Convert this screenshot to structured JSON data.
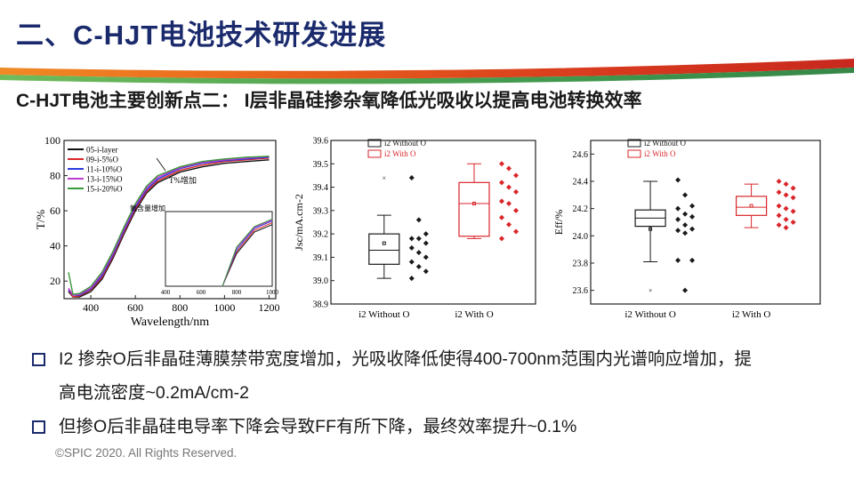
{
  "header": {
    "title": "二、C-HJT电池技术研发进展",
    "subtitle": "C-HJT电池主要创新点二： I层非晶硅掺杂氧降低光吸收以提高电池转换效率"
  },
  "colors": {
    "title": "#1a2a6c",
    "swoosh_orange": "#e8601c",
    "swoosh_green": "#3a9a3a",
    "with_o": "#d9262a",
    "without_o": "#1a1a1a"
  },
  "chart_data": [
    {
      "type": "line",
      "xlabel": "Wavelength/nm",
      "ylabel": "T/%",
      "xlim": [
        280,
        1230
      ],
      "ylim": [
        10,
        100
      ],
      "xticks": [
        "400",
        "600",
        "800",
        "1000",
        "1200"
      ],
      "yticks": [
        "20",
        "40",
        "60",
        "80",
        "100"
      ],
      "x": [
        300,
        320,
        350,
        400,
        450,
        500,
        550,
        600,
        650,
        700,
        800,
        900,
        1000,
        1100,
        1200
      ],
      "series": [
        {
          "name": "05-i-layer",
          "color": "#111111",
          "values": [
            14,
            11,
            11,
            14,
            21,
            33,
            47,
            60,
            70,
            76,
            82,
            85,
            87,
            88,
            89
          ]
        },
        {
          "name": "09-i-5%O",
          "color": "#d9262a",
          "values": [
            15,
            11,
            11.5,
            15,
            22,
            34,
            48,
            61,
            71,
            77,
            83,
            86,
            88,
            89,
            90
          ]
        },
        {
          "name": "11-i-10%O",
          "color": "#2a3adf",
          "values": [
            15,
            12,
            12,
            15.5,
            23,
            35,
            49,
            62,
            72,
            78,
            84,
            87,
            88.5,
            89.5,
            90.5
          ]
        },
        {
          "name": "13-i-15%O",
          "color": "#c03ad0",
          "values": [
            16,
            12,
            12.5,
            16,
            24,
            36,
            50,
            63,
            73,
            79,
            84.5,
            87.5,
            89,
            90,
            91
          ]
        },
        {
          "name": "15-i-20%O",
          "color": "#3a9a3a",
          "values": [
            25,
            12.5,
            13,
            17,
            25,
            37,
            51,
            64,
            74,
            80,
            85,
            88,
            89.5,
            90.5,
            91
          ]
        }
      ],
      "annotations": [
        "T%增加",
        "氧含量增加"
      ],
      "inset": {
        "xlim": [
          400,
          1000
        ],
        "xticks": [
          "400",
          "600",
          "800",
          "1000"
        ],
        "x": [
          720,
          800,
          900,
          1000
        ],
        "series_values": [
          [
            0,
            35,
            58,
            66
          ],
          [
            0,
            37,
            60,
            68
          ],
          [
            0,
            39,
            62,
            70
          ],
          [
            0,
            41,
            63,
            71
          ],
          [
            0,
            42,
            64,
            72
          ]
        ]
      }
    },
    {
      "type": "box",
      "ylabel": "Jsc/mA.cm-2",
      "ylim": [
        38.9,
        39.6
      ],
      "yticks": [
        "38.9",
        "39.0",
        "39.1",
        "39.2",
        "39.3",
        "39.4",
        "39.5",
        "39.6"
      ],
      "categories": [
        "i2 Without O",
        "i2 With O"
      ],
      "legend": [
        "i2 Without O",
        "i2 With O"
      ],
      "boxes": [
        {
          "color": "#1a1a1a",
          "q1": 39.07,
          "median": 39.13,
          "q3": 39.2,
          "wlo": 39.01,
          "whi": 39.28,
          "mean": 39.16,
          "outliers": [
            39.44
          ],
          "points": [
            39.44,
            39.26,
            39.2,
            39.18,
            39.18,
            39.16,
            39.14,
            39.12,
            39.1,
            39.08,
            39.06,
            39.04,
            39.01
          ]
        },
        {
          "color": "#d9262a",
          "q1": 39.19,
          "median": 39.33,
          "q3": 39.42,
          "wlo": 39.18,
          "whi": 39.5,
          "mean": 39.33,
          "outliers": [],
          "points": [
            39.5,
            39.48,
            39.45,
            39.42,
            39.4,
            39.38,
            39.34,
            39.33,
            39.3,
            39.27,
            39.24,
            39.21,
            39.18
          ]
        }
      ]
    },
    {
      "type": "box",
      "ylabel": "Eff/%",
      "ylim": [
        23.5,
        24.7
      ],
      "yticks": [
        "23.6",
        "23.8",
        "24.0",
        "24.2",
        "24.4",
        "24.6"
      ],
      "categories": [
        "i2 Without O",
        "i2 With O"
      ],
      "legend": [
        "i2 Without O",
        "i2 With O"
      ],
      "boxes": [
        {
          "color": "#1a1a1a",
          "q1": 24.07,
          "median": 24.13,
          "q3": 24.19,
          "wlo": 23.81,
          "whi": 24.4,
          "mean": 24.05,
          "outliers": [
            23.6
          ],
          "points": [
            24.41,
            24.3,
            24.22,
            24.2,
            24.16,
            24.14,
            24.12,
            24.08,
            24.05,
            24.04,
            24.02,
            23.82,
            23.82,
            23.6
          ]
        },
        {
          "color": "#d9262a",
          "q1": 24.15,
          "median": 24.21,
          "q3": 24.29,
          "wlo": 24.06,
          "whi": 24.38,
          "mean": 24.22,
          "outliers": [],
          "points": [
            24.4,
            24.38,
            24.35,
            24.32,
            24.3,
            24.28,
            24.22,
            24.2,
            24.18,
            24.15,
            24.12,
            24.1,
            24.08,
            24.06
          ]
        }
      ]
    }
  ],
  "bullets": [
    {
      "line1": "I2 掺杂O后非晶硅薄膜禁带宽度增加，光吸收降低使得400-700nm范围内光谱响应增加，提",
      "line2": "高电流密度~0.2mA/cm-2"
    },
    {
      "line1": "但掺O后非晶硅电导率下降会导致FF有所下降，最终效率提升~0.1%"
    }
  ],
  "footer": {
    "copyright": "©SPIC 2020. All Rights Reserved."
  }
}
